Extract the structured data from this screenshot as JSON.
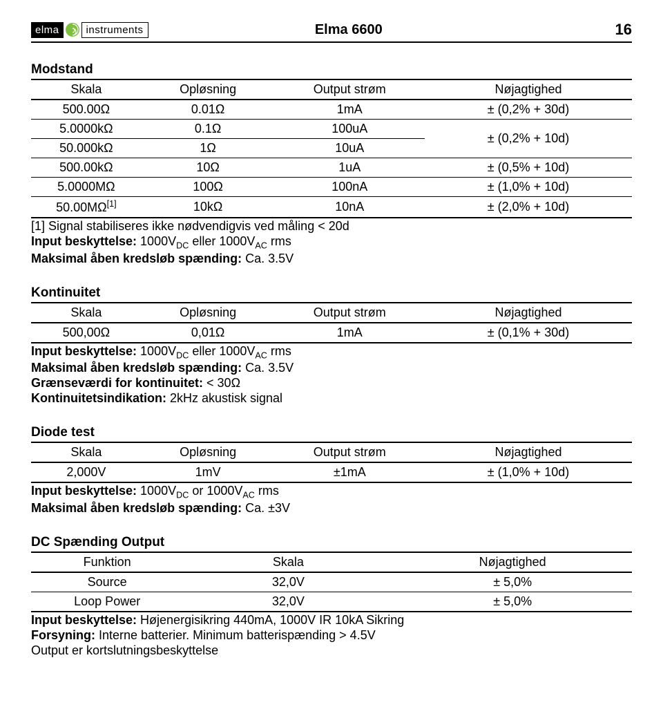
{
  "header": {
    "logo_left": "elma",
    "logo_right": "instruments",
    "title": "Elma 6600",
    "page": "16"
  },
  "sections": [
    {
      "title": "Modstand",
      "table": {
        "type": "t4",
        "headers": [
          "Skala",
          "Opløsning",
          "Output strøm",
          "Nøjagtighed"
        ],
        "rows": [
          [
            "500.00Ω",
            "0.01Ω",
            "1mA",
            "± (0,2% + 30d)"
          ],
          [
            "5.0000kΩ",
            "0.1Ω",
            "100uA",
            {
              "rowspan": 2,
              "text": "± (0,2% + 10d)"
            }
          ],
          [
            "50.000kΩ",
            "1Ω",
            "10uA",
            null
          ],
          [
            "500.00kΩ",
            "10Ω",
            "1uA",
            "± (0,5% + 10d)"
          ],
          [
            "5.0000MΩ",
            "100Ω",
            "100nA",
            "± (1,0% + 10d)"
          ],
          [
            "50.00MΩ<sup>[1]</sup>",
            "10kΩ",
            "10nA",
            "± (2,0% + 10d)"
          ]
        ]
      },
      "notes": [
        {
          "bold": false,
          "text": "[1] Signal stabiliseres ikke nødvendigvis ved måling < 20d"
        },
        {
          "bold": true,
          "text": "Input beskyttelse: ",
          "rest": "1000V<sub>DC</sub> eller 1000V<sub>AC</sub> rms"
        },
        {
          "bold": true,
          "text": "Maksimal åben kredsløb spænding: ",
          "rest": "Ca. 3.5V"
        }
      ]
    },
    {
      "title": "Kontinuitet",
      "table": {
        "type": "t4",
        "headers": [
          "Skala",
          "Opløsning",
          "Output strøm",
          "Nøjagtighed"
        ],
        "rows": [
          [
            "500,00Ω",
            "0,01Ω",
            "1mA",
            "± (0,1% + 30d)"
          ]
        ]
      },
      "notes": [
        {
          "bold": true,
          "text": "Input beskyttelse: ",
          "rest": "1000V<sub>DC</sub> eller 1000V<sub>AC</sub> rms"
        },
        {
          "bold": true,
          "text": "Maksimal åben kredsløb spænding: ",
          "rest": "Ca. 3.5V"
        },
        {
          "bold": true,
          "text": "Grænseværdi for kontinuitet: ",
          "rest": "< 30Ω"
        },
        {
          "bold": true,
          "text": "Kontinuitetsindikation: ",
          "rest": "2kHz akustisk signal"
        }
      ]
    },
    {
      "title": "Diode test",
      "table": {
        "type": "t4",
        "headers": [
          "Skala",
          "Opløsning",
          "Output strøm",
          "Nøjagtighed"
        ],
        "rows": [
          [
            "2,000V",
            "1mV",
            "±1mA",
            "± (1,0% + 10d)"
          ]
        ]
      },
      "notes": [
        {
          "bold": true,
          "text": "Input beskyttelse: ",
          "rest": "1000V<sub>DC</sub> or 1000V<sub>AC</sub> rms"
        },
        {
          "bold": true,
          "text": "Maksimal åben kredsløb spænding: ",
          "rest": "Ca. ±3V"
        }
      ]
    },
    {
      "title": "DC Spænding Output",
      "table": {
        "type": "t3",
        "headers": [
          "Funktion",
          "Skala",
          "Nøjagtighed"
        ],
        "rows": [
          [
            "Source",
            "32,0V",
            "± 5,0%"
          ],
          [
            "Loop Power",
            "32,0V",
            "± 5,0%"
          ]
        ]
      },
      "notes": [
        {
          "bold": true,
          "text": "Input beskyttelse: ",
          "rest": "Højenergisikring 440mA, 1000V IR 10kA Sikring"
        },
        {
          "bold": true,
          "text": "Forsyning: ",
          "rest": "Interne batterier. Minimum batterispænding > 4.5V"
        },
        {
          "bold": false,
          "text": "Output er kortslutningsbeskyttelse"
        }
      ]
    }
  ]
}
